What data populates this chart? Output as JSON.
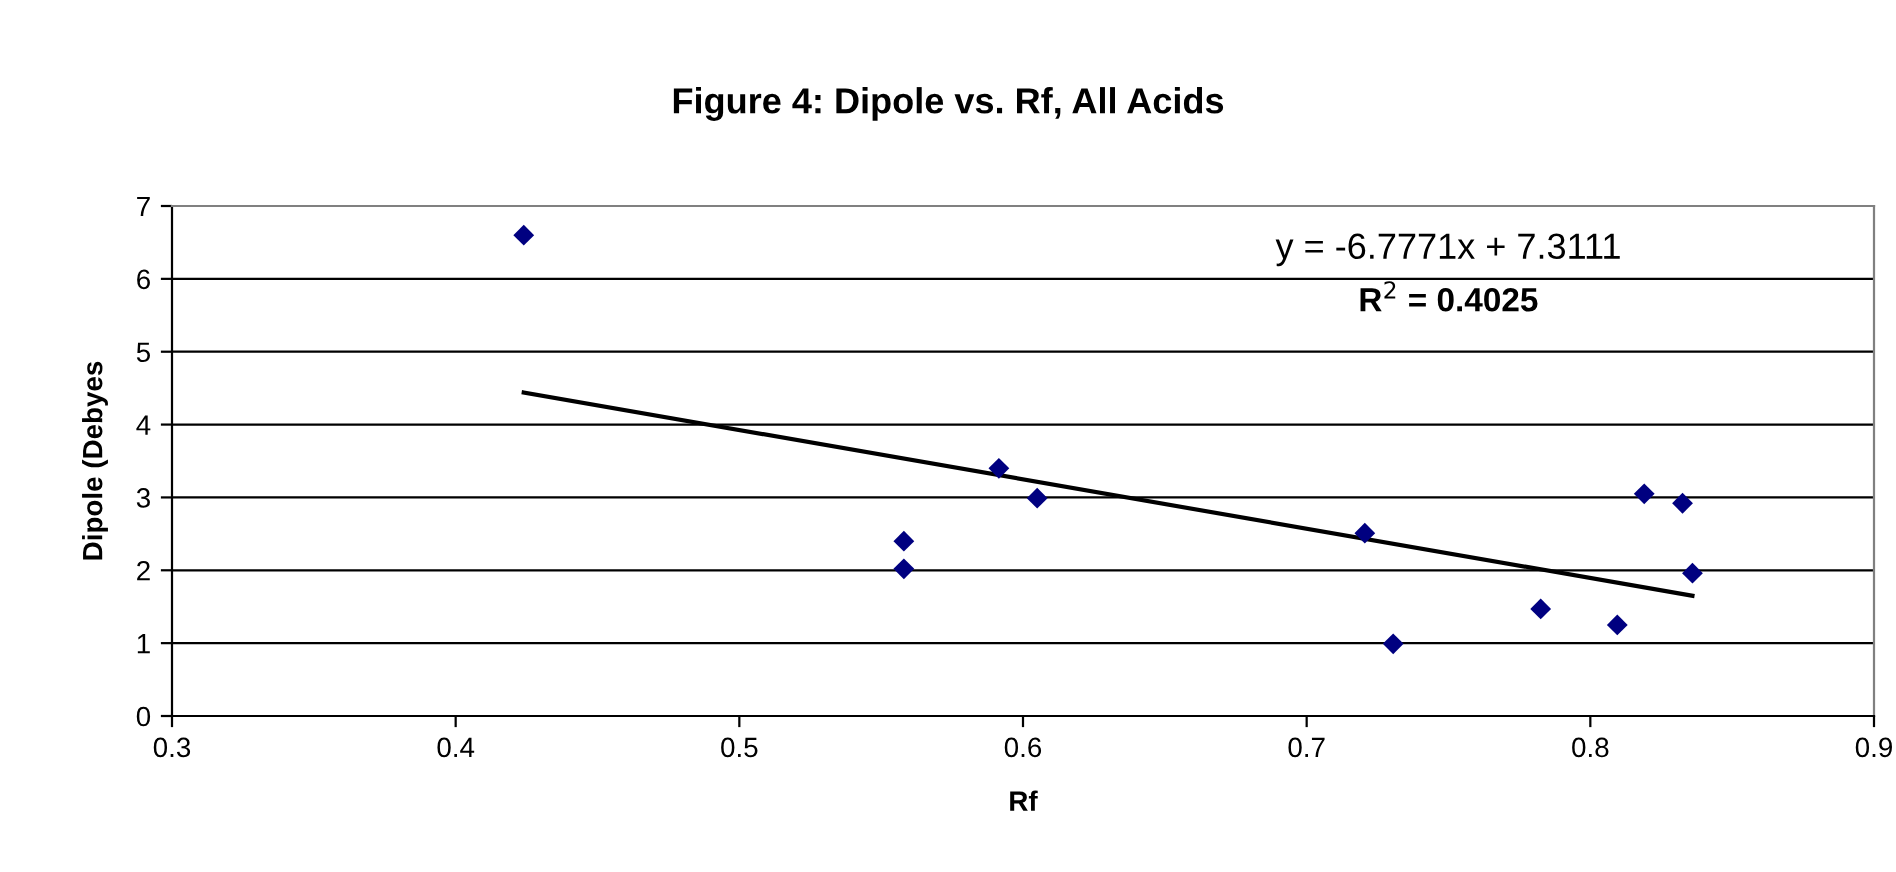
{
  "chart_data": {
    "type": "scatter",
    "title": "Figure 4: Dipole vs. Rf, All Acids",
    "xlabel": "Rf",
    "ylabel": "Dipole (Debyes",
    "series": [
      {
        "type": "scatter",
        "color": "#000080",
        "marker": "diamond",
        "x": [
          0.424,
          0.558,
          0.558,
          0.5915,
          0.605,
          0.7205,
          0.7305,
          0.7825,
          0.8095,
          0.819,
          0.8325,
          0.836
        ],
        "values": [
          6.6,
          2.4,
          2.02,
          3.4,
          2.99,
          2.51,
          0.99,
          1.47,
          1.25,
          3.05,
          2.92,
          1.96
        ]
      },
      {
        "type": "line",
        "color": "#000000",
        "marker": "none",
        "x": [
          0.424,
          0.836
        ],
        "values": [
          4.44,
          1.65
        ]
      }
    ],
    "annotations": [
      "y = -6.7771x + 7.3111",
      "R$^{2}$ = 0.4025"
    ],
    "xlim": [
      0.3,
      0.9
    ],
    "xticks": [
      0.3,
      0.4,
      0.5,
      0.6,
      0.7,
      0.8,
      0.9
    ],
    "ylim": [
      0,
      7
    ],
    "yticks": [
      0,
      1,
      2,
      3,
      4,
      5,
      6,
      7
    ],
    "grid": "y",
    "legend": false
  }
}
